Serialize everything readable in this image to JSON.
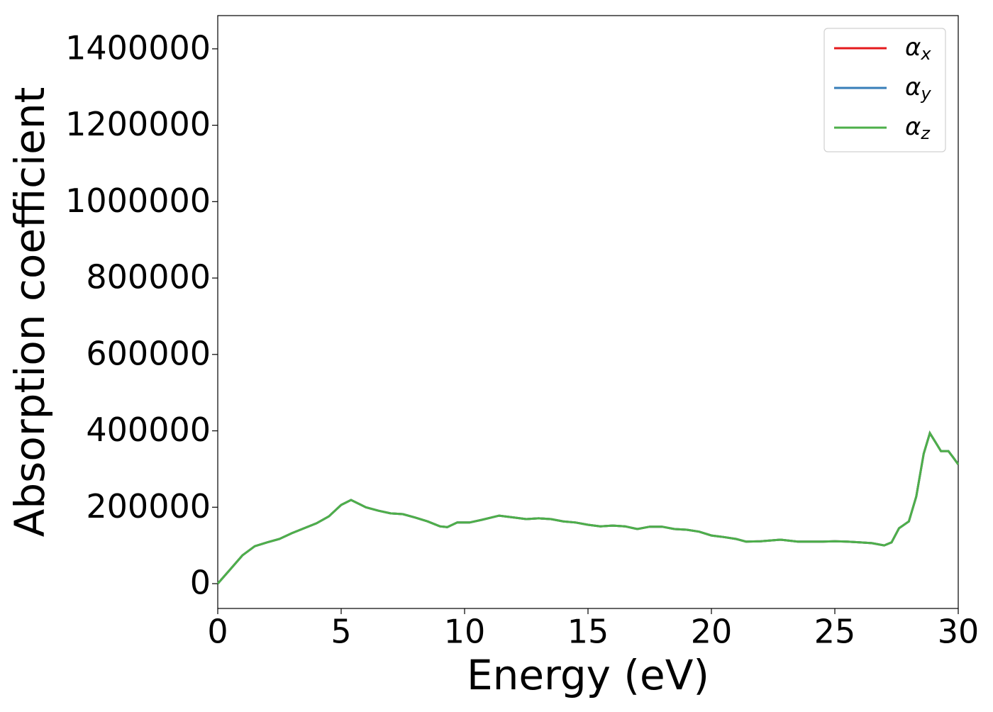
{
  "chart_data": {
    "type": "line",
    "xlabel": "Energy (eV)",
    "ylabel": "Absorption coefficient",
    "x": [
      0,
      0.5,
      1,
      1.5,
      2,
      2.5,
      3,
      3.5,
      4,
      4.5,
      5,
      5.4,
      6,
      6.5,
      7,
      7.5,
      8,
      8.5,
      9,
      9.3,
      9.7,
      10.2,
      10.7,
      11.4,
      12,
      12.5,
      13,
      13.5,
      14,
      14.5,
      15,
      15.5,
      16,
      16.5,
      17,
      17.5,
      18,
      18.5,
      19,
      19.5,
      20,
      20.5,
      21,
      21.4,
      22,
      22.8,
      23.5,
      24,
      24.5,
      25,
      25.5,
      26,
      26.5,
      27,
      27.3,
      27.6,
      28,
      28.3,
      28.6,
      28.85,
      29.1,
      29.3,
      29.6,
      29.8,
      30
    ],
    "series": [
      {
        "name": "αx",
        "color": "#e41a1c",
        "values": [
          0,
          37000,
          74000,
          98000,
          108000,
          117000,
          132000,
          145000,
          158000,
          176000,
          206000,
          219000,
          200000,
          191000,
          184000,
          182000,
          173000,
          163000,
          150000,
          148000,
          160000,
          160000,
          167000,
          178000,
          173000,
          169000,
          171000,
          169000,
          163000,
          160000,
          154000,
          150000,
          152000,
          150000,
          143000,
          149000,
          149000,
          143000,
          141000,
          136000,
          126000,
          122000,
          117000,
          110000,
          111000,
          115000,
          110000,
          110000,
          110000,
          111000,
          110000,
          108000,
          106000,
          100000,
          108000,
          145000,
          163000,
          228000,
          340000,
          394000,
          368000,
          347000,
          347000,
          330000,
          312000
        ]
      },
      {
        "name": "αy",
        "color": "#377eb8",
        "values": [
          0,
          37000,
          74000,
          98000,
          108000,
          117000,
          132000,
          145000,
          158000,
          176000,
          206000,
          219000,
          200000,
          191000,
          184000,
          182000,
          173000,
          163000,
          150000,
          148000,
          160000,
          160000,
          167000,
          178000,
          173000,
          169000,
          171000,
          169000,
          163000,
          160000,
          154000,
          150000,
          152000,
          150000,
          143000,
          149000,
          149000,
          143000,
          141000,
          136000,
          126000,
          122000,
          117000,
          110000,
          111000,
          115000,
          110000,
          110000,
          110000,
          111000,
          110000,
          108000,
          106000,
          100000,
          108000,
          145000,
          163000,
          228000,
          340000,
          394000,
          368000,
          347000,
          347000,
          330000,
          312000
        ]
      },
      {
        "name": "αz",
        "color": "#4daf4a",
        "values": [
          0,
          37000,
          74000,
          98000,
          108000,
          117000,
          132000,
          145000,
          158000,
          176000,
          206000,
          219000,
          200000,
          191000,
          184000,
          182000,
          173000,
          163000,
          150000,
          148000,
          160000,
          160000,
          167000,
          178000,
          173000,
          169000,
          171000,
          169000,
          163000,
          160000,
          154000,
          150000,
          152000,
          150000,
          143000,
          149000,
          149000,
          143000,
          141000,
          136000,
          126000,
          122000,
          117000,
          110000,
          111000,
          115000,
          110000,
          110000,
          110000,
          111000,
          110000,
          108000,
          106000,
          100000,
          108000,
          145000,
          163000,
          228000,
          340000,
          394000,
          368000,
          347000,
          347000,
          330000,
          312000
        ]
      }
    ],
    "xlim": [
      0,
      30
    ],
    "xticks": [
      0,
      5,
      10,
      15,
      20,
      25,
      30
    ],
    "ylim": [
      -65000,
      1487000
    ],
    "yticks": [
      0,
      200000,
      400000,
      600000,
      800000,
      1000000,
      1200000,
      1400000
    ],
    "legend": "upper right",
    "grid": false
  }
}
